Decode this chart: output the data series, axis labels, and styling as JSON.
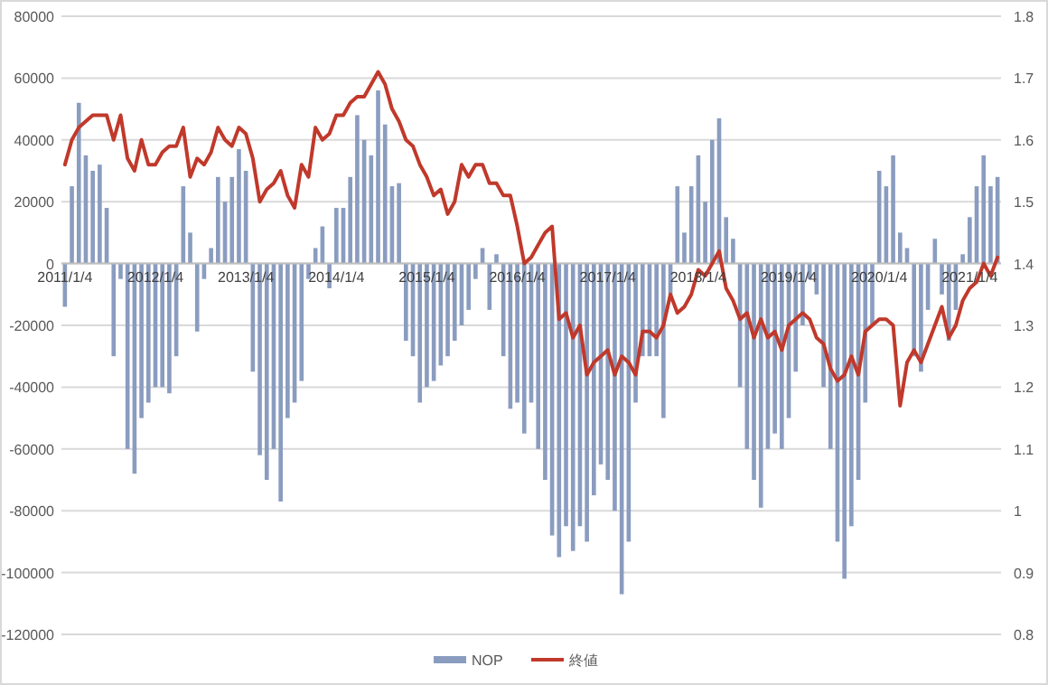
{
  "chart_data": {
    "type": "bar",
    "categories": [
      "2011/1/4",
      null,
      null,
      null,
      null,
      null,
      null,
      null,
      null,
      null,
      null,
      null,
      null,
      "2012/1/4",
      null,
      null,
      null,
      null,
      null,
      null,
      null,
      null,
      null,
      null,
      null,
      null,
      "2013/1/4",
      null,
      null,
      null,
      null,
      null,
      null,
      null,
      null,
      null,
      null,
      null,
      null,
      "2014/1/4",
      null,
      null,
      null,
      null,
      null,
      null,
      null,
      null,
      null,
      null,
      null,
      null,
      "2015/1/4",
      null,
      null,
      null,
      null,
      null,
      null,
      null,
      null,
      null,
      null,
      null,
      null,
      "2016/1/4",
      null,
      null,
      null,
      null,
      null,
      null,
      null,
      null,
      null,
      null,
      null,
      null,
      "2017/1/4",
      null,
      null,
      null,
      null,
      null,
      null,
      null,
      null,
      null,
      null,
      null,
      null,
      "2018/1/4",
      null,
      null,
      null,
      null,
      null,
      null,
      null,
      null,
      null,
      null,
      null,
      null,
      "2019/1/4",
      null,
      null,
      null,
      null,
      null,
      null,
      null,
      null,
      null,
      null,
      null,
      null,
      "2020/1/4",
      null,
      null,
      null,
      null,
      null,
      null,
      null,
      null,
      null,
      null,
      null,
      null,
      "2021/1/4",
      null,
      null,
      null,
      null
    ],
    "series": [
      {
        "name": "NOP",
        "color": "#8a9cbf",
        "values": [
          -14000,
          25000,
          52000,
          35000,
          30000,
          32000,
          18000,
          -30000,
          -5000,
          -60000,
          -68000,
          -50000,
          -45000,
          -40000,
          -40000,
          -42000,
          -30000,
          25000,
          10000,
          -22000,
          -5000,
          5000,
          28000,
          20000,
          28000,
          37000,
          30000,
          -35000,
          -62000,
          -70000,
          -60000,
          -77000,
          -50000,
          -45000,
          -38000,
          -5000,
          5000,
          12000,
          -8000,
          18000,
          18000,
          28000,
          48000,
          40000,
          35000,
          56000,
          45000,
          25000,
          26000,
          -25000,
          -30000,
          -45000,
          -40000,
          -38000,
          -33000,
          -30000,
          -25000,
          -20000,
          -15000,
          -5000,
          5000,
          -15000,
          3000,
          -30000,
          -47000,
          -45000,
          -55000,
          -45000,
          -60000,
          -70000,
          -88000,
          -95000,
          -85000,
          -93000,
          -85000,
          -90000,
          -75000,
          -65000,
          -70000,
          -80000,
          -107000,
          -90000,
          -45000,
          -30000,
          -30000,
          -30000,
          -50000,
          -10000,
          25000,
          10000,
          25000,
          35000,
          20000,
          40000,
          47000,
          15000,
          8000,
          -40000,
          -60000,
          -70000,
          -79000,
          -60000,
          -55000,
          -60000,
          -50000,
          -35000,
          -20000,
          -5000,
          -10000,
          -40000,
          -60000,
          -90000,
          -102000,
          -85000,
          -70000,
          -45000,
          -20000,
          30000,
          25000,
          35000,
          10000,
          5000,
          -30000,
          -35000,
          -15000,
          8000,
          -10000,
          -25000,
          -15000,
          3000,
          15000,
          25000,
          35000,
          25000,
          28000
        ]
      },
      {
        "name": "終値",
        "type": "line",
        "axis": "y2",
        "color": "#c0392b",
        "values": [
          1.56,
          1.6,
          1.62,
          1.63,
          1.64,
          1.64,
          1.64,
          1.6,
          1.64,
          1.57,
          1.55,
          1.6,
          1.56,
          1.56,
          1.58,
          1.59,
          1.59,
          1.62,
          1.54,
          1.57,
          1.56,
          1.58,
          1.62,
          1.6,
          1.59,
          1.62,
          1.61,
          1.57,
          1.5,
          1.52,
          1.53,
          1.55,
          1.51,
          1.49,
          1.56,
          1.54,
          1.62,
          1.6,
          1.61,
          1.64,
          1.64,
          1.66,
          1.67,
          1.67,
          1.69,
          1.71,
          1.69,
          1.65,
          1.63,
          1.6,
          1.59,
          1.56,
          1.54,
          1.51,
          1.52,
          1.48,
          1.5,
          1.56,
          1.54,
          1.56,
          1.56,
          1.53,
          1.53,
          1.51,
          1.51,
          1.46,
          1.4,
          1.41,
          1.43,
          1.45,
          1.46,
          1.31,
          1.32,
          1.28,
          1.3,
          1.22,
          1.24,
          1.25,
          1.26,
          1.22,
          1.25,
          1.24,
          1.22,
          1.29,
          1.29,
          1.28,
          1.3,
          1.35,
          1.32,
          1.33,
          1.35,
          1.39,
          1.38,
          1.4,
          1.42,
          1.36,
          1.34,
          1.31,
          1.32,
          1.28,
          1.31,
          1.28,
          1.29,
          1.26,
          1.3,
          1.31,
          1.32,
          1.31,
          1.28,
          1.27,
          1.23,
          1.21,
          1.22,
          1.25,
          1.22,
          1.29,
          1.3,
          1.31,
          1.31,
          1.3,
          1.17,
          1.24,
          1.26,
          1.24,
          1.27,
          1.3,
          1.33,
          1.28,
          1.3,
          1.34,
          1.36,
          1.37,
          1.4,
          1.38,
          1.41
        ]
      }
    ],
    "ylim": [
      -120000,
      80000
    ],
    "yticks": [
      -120000,
      -100000,
      -80000,
      -60000,
      -40000,
      -20000,
      0,
      20000,
      40000,
      60000,
      80000
    ],
    "y2lim": [
      0.8,
      1.8
    ],
    "y2ticks": [
      0.8,
      0.9,
      1,
      1.1,
      1.2,
      1.3,
      1.4,
      1.5,
      1.6,
      1.7,
      1.8
    ],
    "grid": "y",
    "legend": "bottom"
  }
}
